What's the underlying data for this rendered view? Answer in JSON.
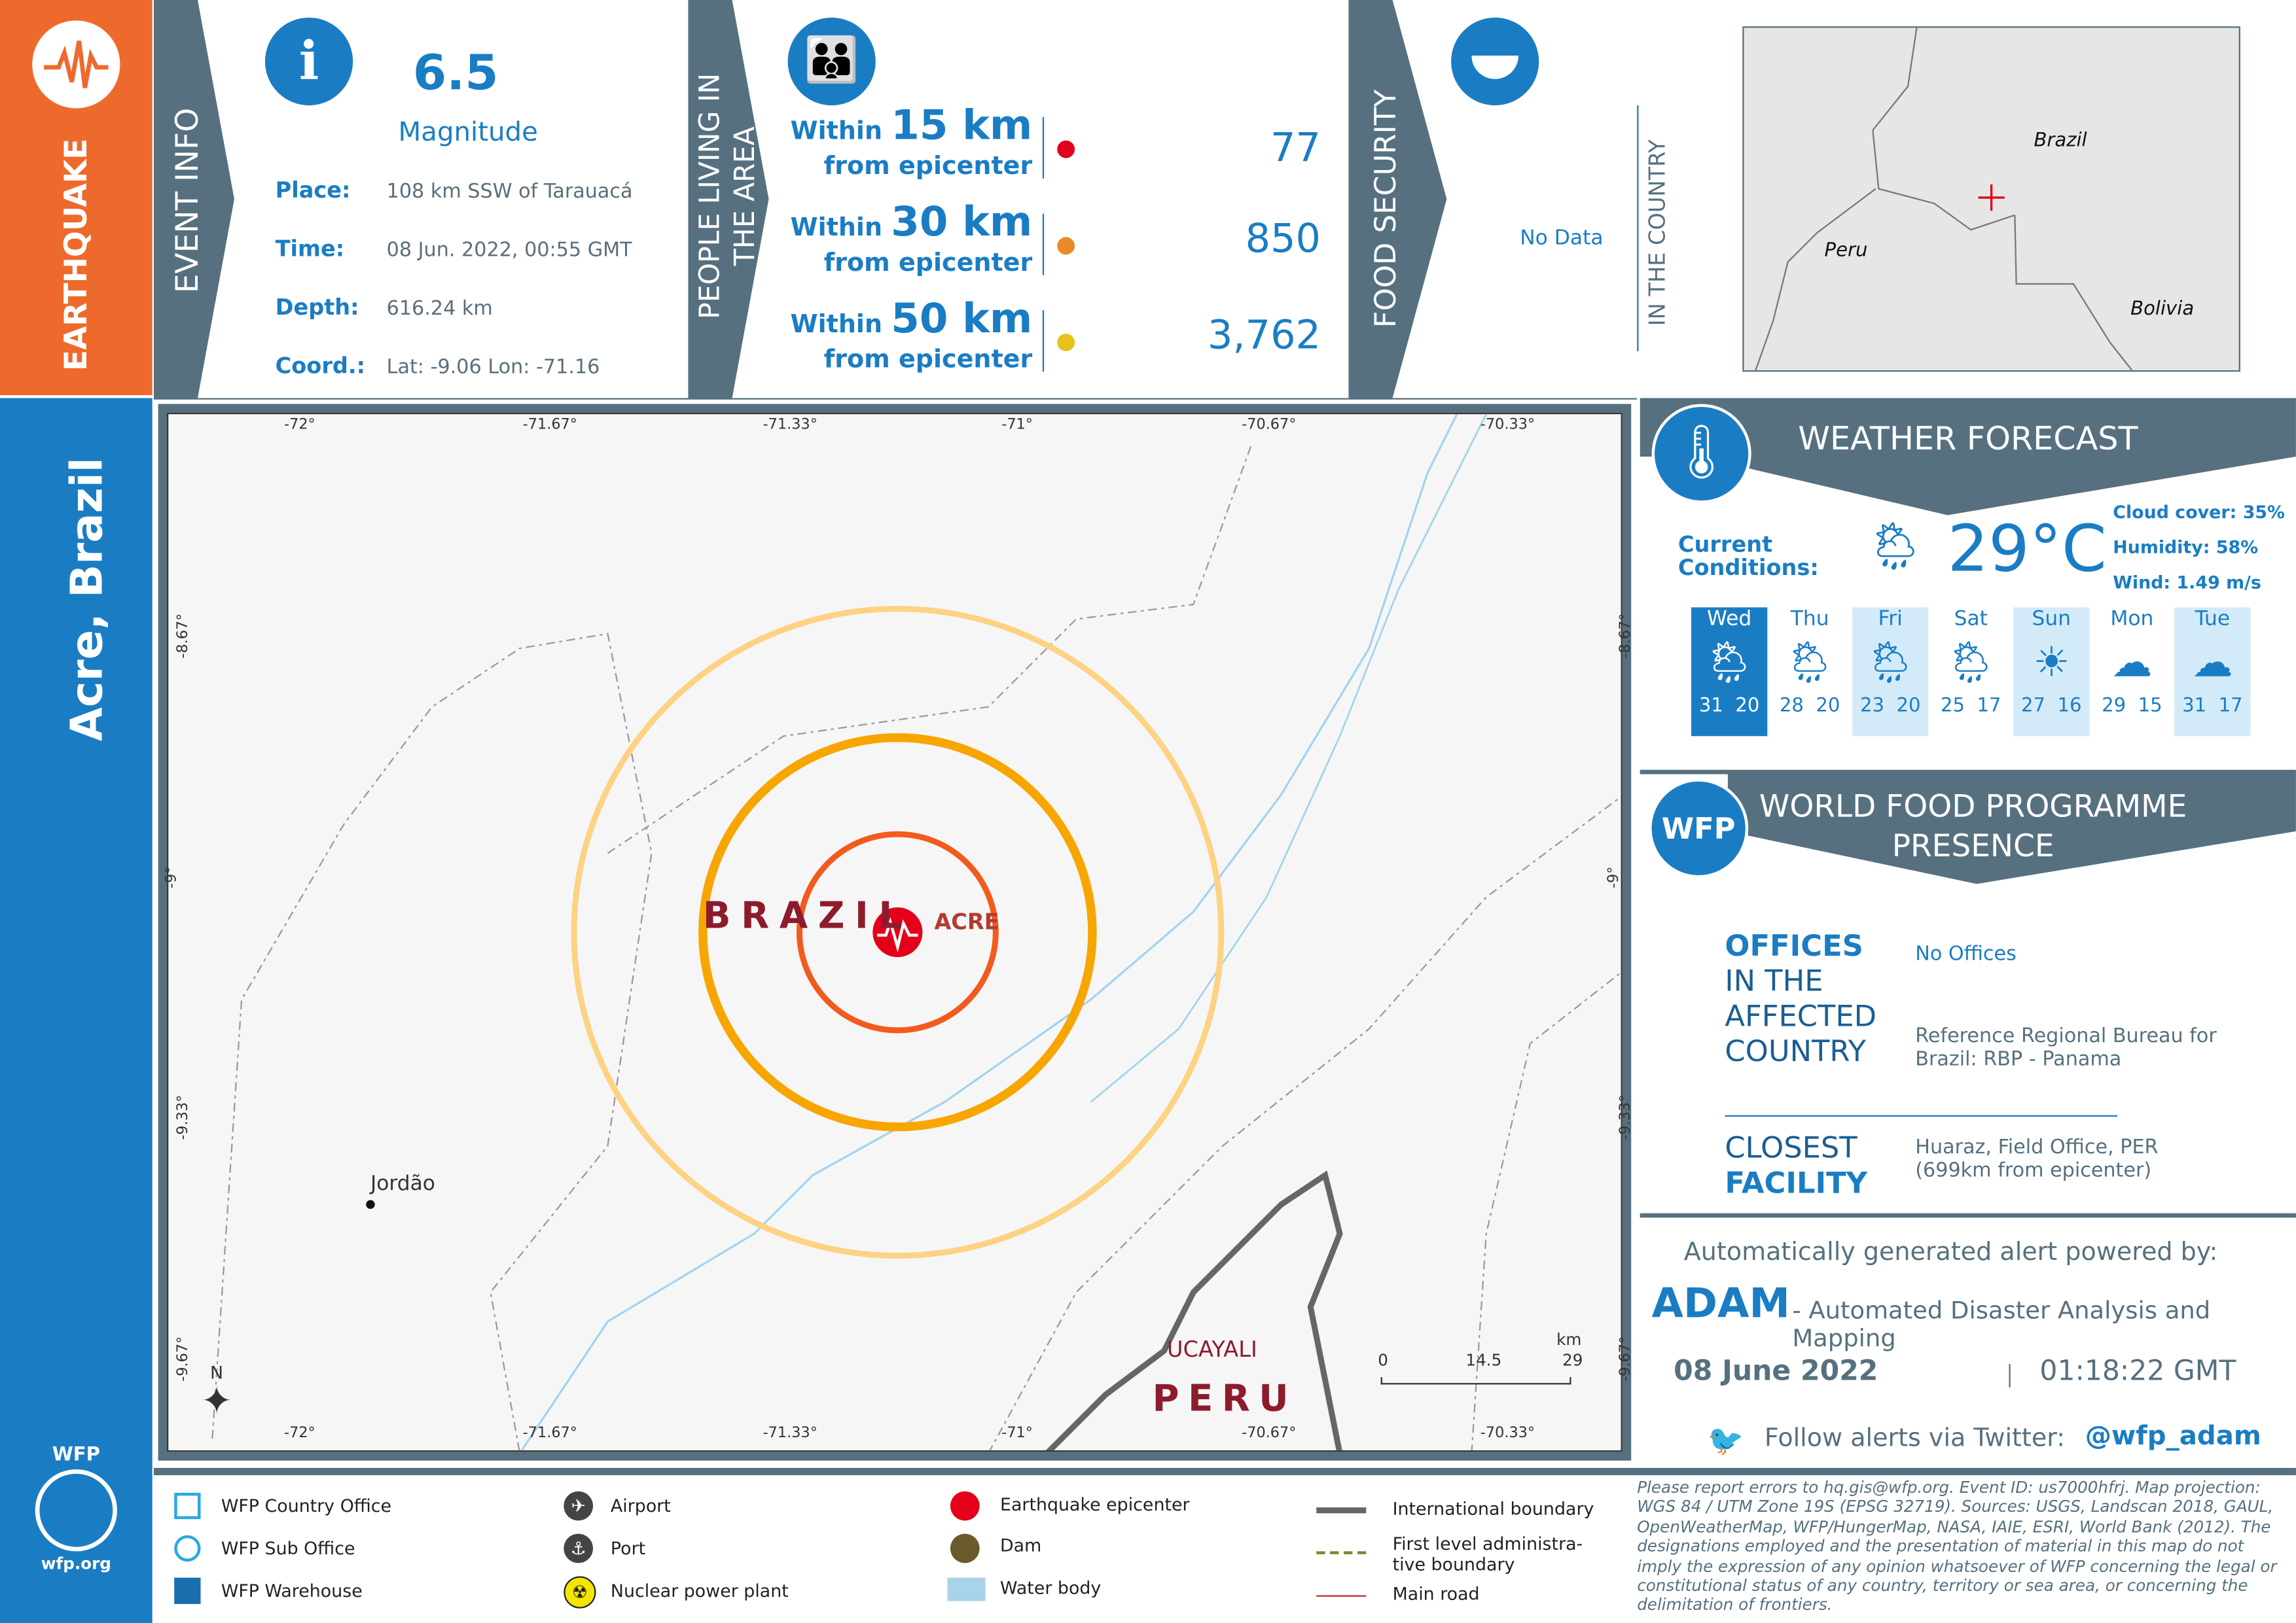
{
  "side": {
    "hazard": "EARTHQUAKE",
    "location": "Acre, Brazil",
    "wfp_logo": "WFP",
    "wfp_url": "wfp.org"
  },
  "event": {
    "header": "EVENT INFO",
    "magnitude": "6.5",
    "magnitude_label": "Magnitude",
    "rows": [
      {
        "label": "Place:",
        "value": "108 km SSW of Tarauacá"
      },
      {
        "label": "Time:",
        "value": "08 Jun. 2022, 00:55 GMT"
      },
      {
        "label": "Depth:",
        "value": "616.24 km"
      },
      {
        "label": "Coord.:",
        "value": "Lat: -9.06 Lon: -71.16"
      }
    ]
  },
  "people": {
    "header_line1": "PEOPLE LIVING IN",
    "header_line2": "THE AREA",
    "rings": [
      {
        "within": "Within",
        "km": "15 km",
        "from": "from epicenter",
        "count": "77",
        "color": "#e3001b"
      },
      {
        "within": "Within",
        "km": "30 km",
        "from": "from epicenter",
        "count": "850",
        "color": "#e98a26"
      },
      {
        "within": "Within",
        "km": "50 km",
        "from": "from epicenter",
        "count": "3,762",
        "color": "#e6c21b"
      }
    ]
  },
  "food": {
    "header": "FOOD SECURITY",
    "value": "No Data",
    "scope": "IN THE COUNTRY"
  },
  "inset": {
    "labels": [
      "Brazil",
      "Peru",
      "Bolivia"
    ]
  },
  "map": {
    "country_main": "BRAZIL",
    "state": "ACRE",
    "town": "Jordão",
    "region": "UCAYALI",
    "country_other": "PERU",
    "x_ticks": [
      "-72°",
      "-71.67°",
      "-71.33°",
      "-71°",
      "-70.67°",
      "-70.33°"
    ],
    "y_ticks": [
      "-8.67°",
      "-9°",
      "-9.33°",
      "-9.67°"
    ],
    "scale": {
      "start": "0",
      "mid": "14.5",
      "end": "29",
      "unit": "km"
    },
    "north": "N",
    "ring_colors": [
      "#f25a1e",
      "#f7a600",
      "#fdd283"
    ]
  },
  "weather": {
    "title": "WEATHER FORECAST",
    "current_label_1": "Current",
    "current_label_2": "Conditions:",
    "temp": "29°C",
    "current_icon": "sun-cloud-rain",
    "cloud": "Cloud cover: 35%",
    "humidity": "Humidity: 58%",
    "wind": "Wind: 1.49 m/s",
    "days": [
      {
        "day": "Wed",
        "icon": "sun-cloud-rain",
        "hi": "31",
        "lo": "20",
        "style": "selected"
      },
      {
        "day": "Thu",
        "icon": "sun-cloud-rain",
        "hi": "28",
        "lo": "20",
        "style": "plain"
      },
      {
        "day": "Fri",
        "icon": "sun-cloud-rain",
        "hi": "23",
        "lo": "20",
        "style": "light"
      },
      {
        "day": "Sat",
        "icon": "sun-cloud-rain",
        "hi": "25",
        "lo": "17",
        "style": "plain"
      },
      {
        "day": "Sun",
        "icon": "sun",
        "hi": "27",
        "lo": "16",
        "style": "light"
      },
      {
        "day": "Mon",
        "icon": "clouds",
        "hi": "29",
        "lo": "15",
        "style": "plain"
      },
      {
        "day": "Tue",
        "icon": "clouds",
        "hi": "31",
        "lo": "17",
        "style": "light"
      }
    ]
  },
  "presence": {
    "badge": "WFP",
    "title_1": "WORLD FOOD PROGRAMME",
    "title_2": "PRESENCE",
    "offices_1": "OFFICES",
    "offices_2": "IN THE",
    "offices_3": "AFFECTED",
    "offices_4": "COUNTRY",
    "offices_value": "No Offices",
    "reference": "Reference Regional Bureau for Brazil: RBP - Panama",
    "closest_1": "CLOSEST",
    "closest_2": "FACILITY",
    "closest_value": "Huaraz, Field Office, PER (699km from epicenter)"
  },
  "alert": {
    "powered": "Automatically generated alert powered by:",
    "adam": "ADAM",
    "adam_full": "- Automated Disaster Analysis and Mapping",
    "date": "08 June 2022",
    "time": "01:18:22 GMT",
    "twitter_text": "Follow alerts via Twitter:",
    "twitter_handle": "@wfp_adam"
  },
  "legend": {
    "items": [
      "WFP Country Office",
      "WFP Sub Office",
      "WFP Warehouse",
      "Airport",
      "Port",
      "Nuclear power plant",
      "Earthquake epicenter",
      "Dam",
      "Water body",
      "International boundary",
      "First level administra-tive boundary",
      "Main road"
    ]
  },
  "footer": "Please report errors to hq.gis@wfp.org. Event ID: us7000hfrj. Map projection: WGS 84 / UTM Zone 19S (EPSG 32719). Sources: USGS, Landscan 2018, GAUL, OpenWeatherMap, WFP/HungerMap, NASA, IAIE, ESRI, World Bank (2012). The designations employed and the presentation of material in this map do not imply the expression of any opinion whatsoever of WFP concerning the legal or constitutional status of any country, territory or sea area, or concerning the delimitation of frontiers."
}
